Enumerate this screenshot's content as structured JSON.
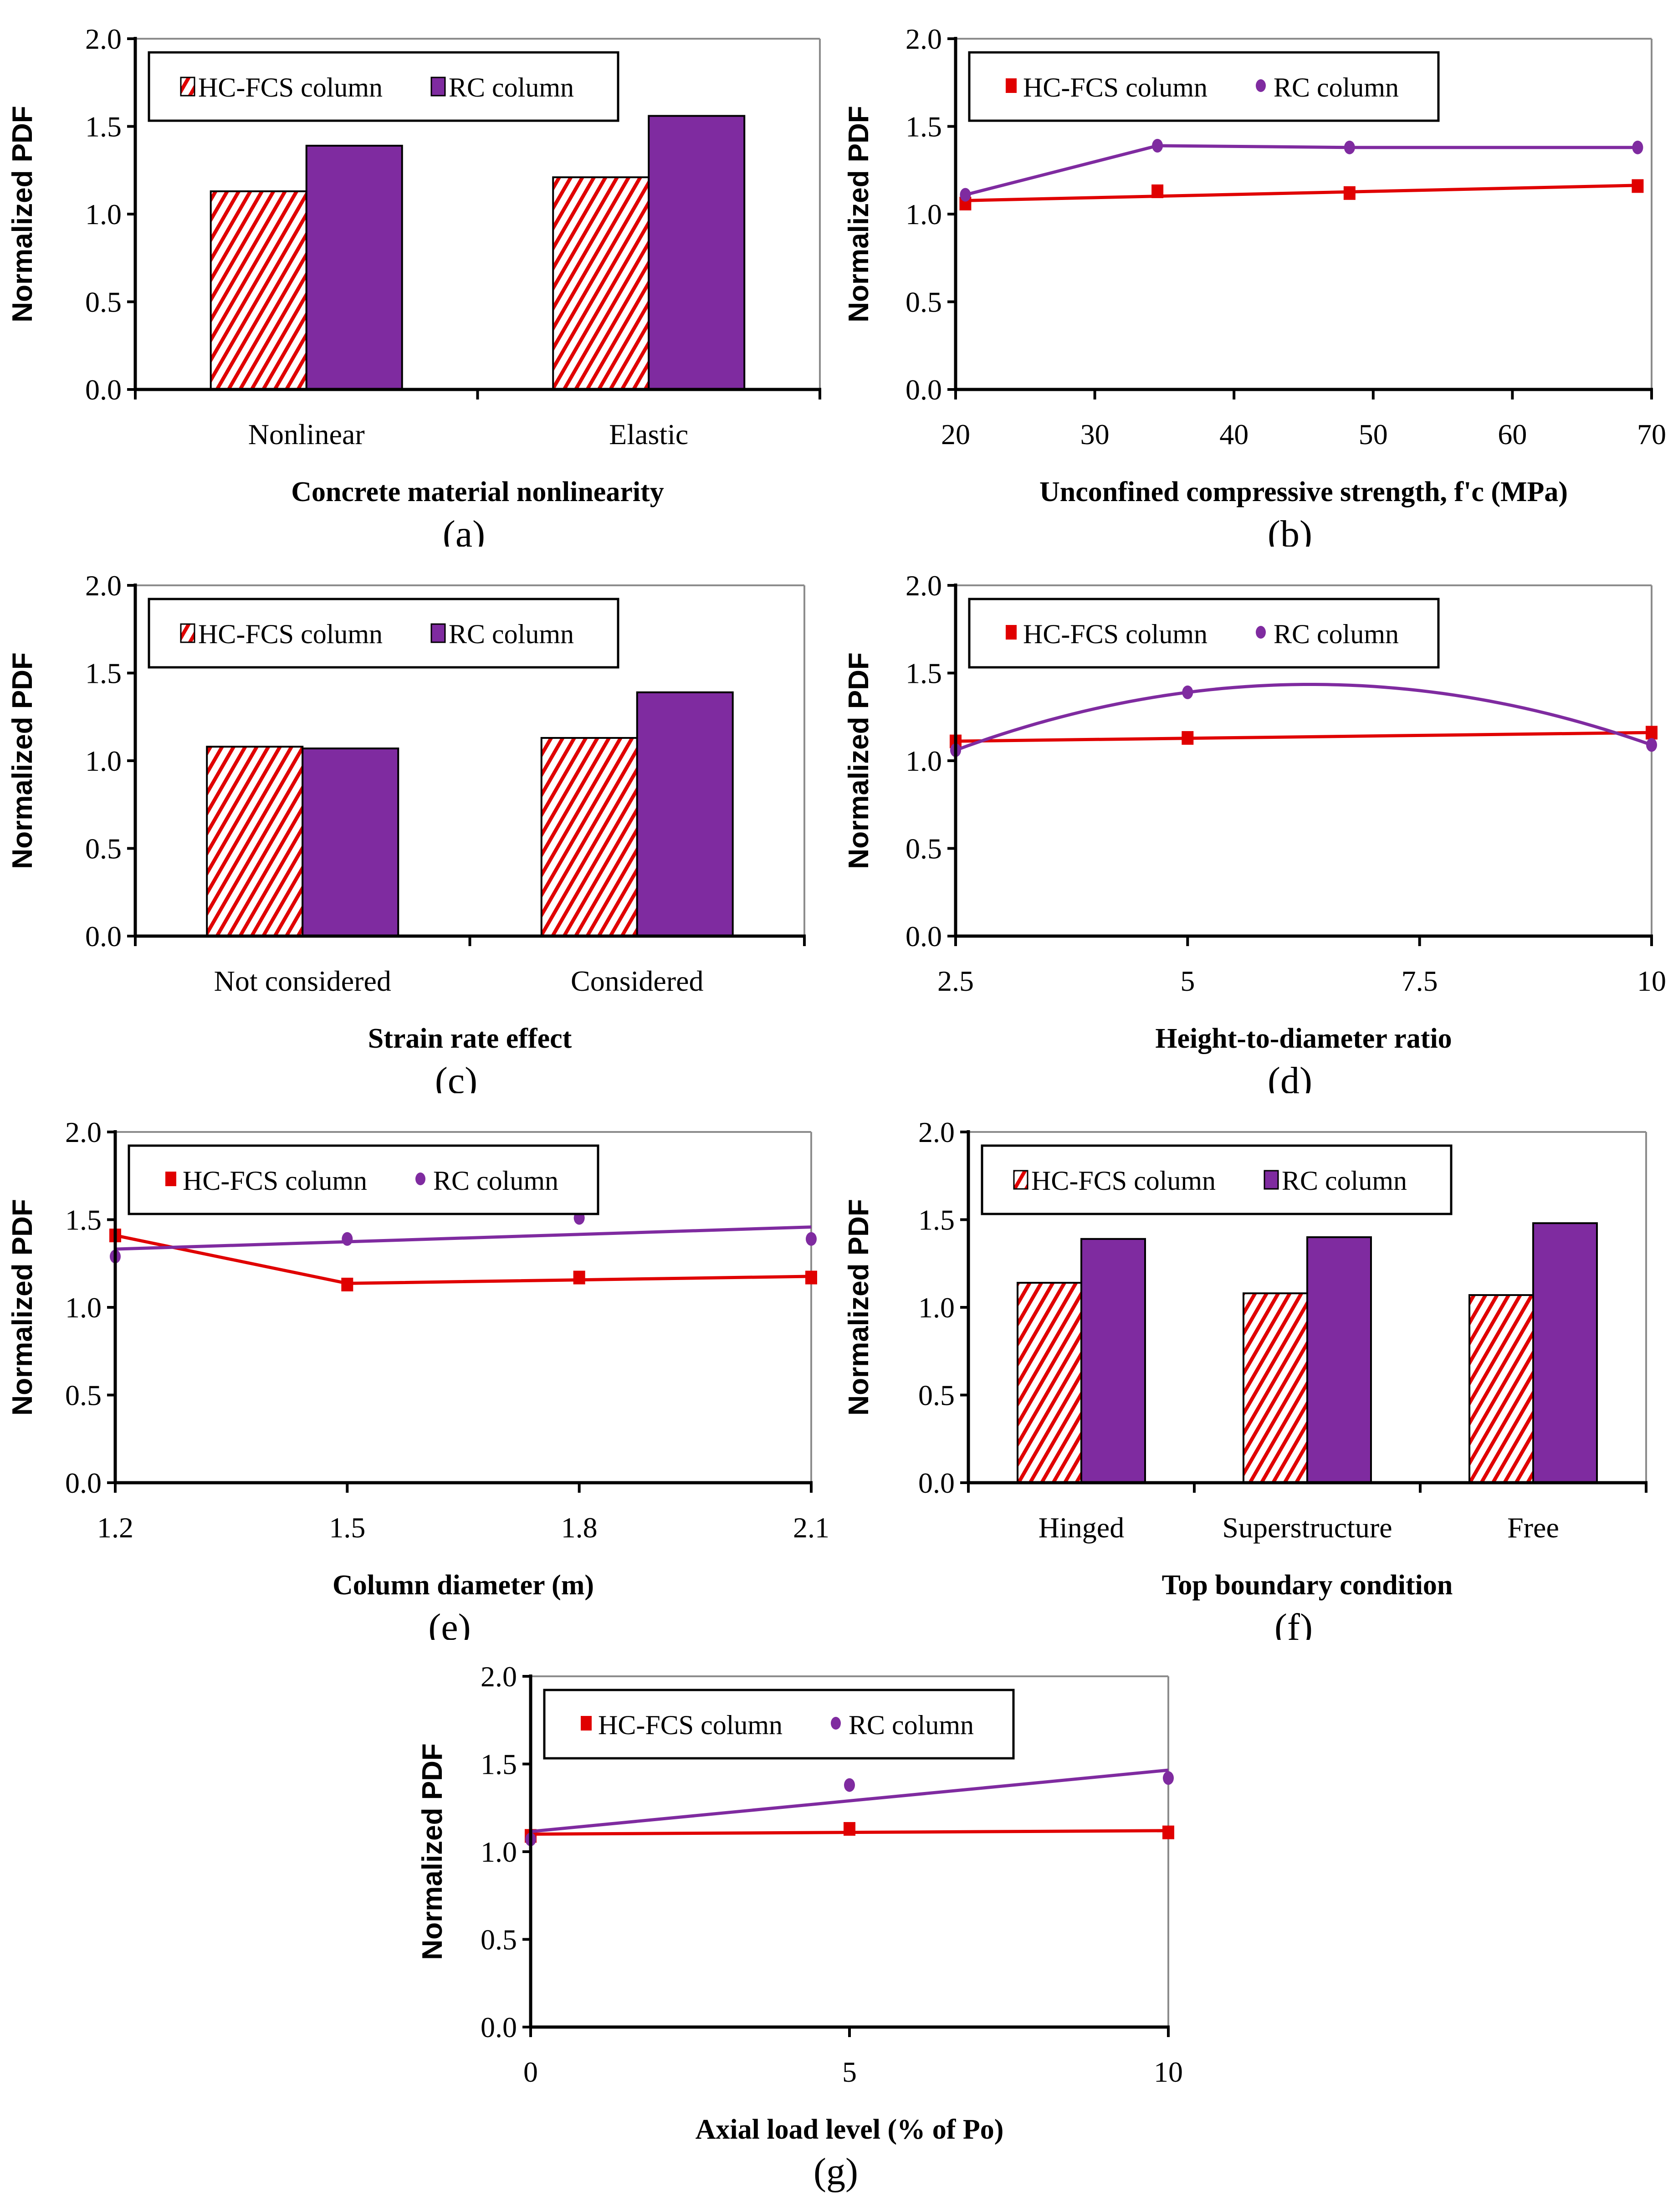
{
  "legend": {
    "series1": "HC-FCS column",
    "series2": "RC column"
  },
  "colors": {
    "hcfcs": "#E00000",
    "rc": "#7F2BA0",
    "axis": "#000000",
    "frame": "#8c8c8c"
  },
  "chart_data": [
    {
      "id": "a",
      "caption": "(a)",
      "type": "bar",
      "title": "",
      "xlabel": "Concrete material nonlinearity",
      "ylabel": "Normalized PDF",
      "ylim": [
        0,
        2.0
      ],
      "yticks": [
        "0.0",
        "0.5",
        "1.0",
        "1.5",
        "2.0"
      ],
      "grid": false,
      "legend_position": "top-left",
      "categories": [
        "Nonlinear",
        "Elastic"
      ],
      "series": [
        {
          "name": "HC-FCS column",
          "style": "hatched",
          "values": [
            1.13,
            1.21
          ]
        },
        {
          "name": "RC column",
          "style": "solid",
          "values": [
            1.39,
            1.56
          ]
        }
      ]
    },
    {
      "id": "b",
      "caption": "(b)",
      "type": "line",
      "title": "",
      "xlabel": "Unconfined compressive strength, f'c (MPa)",
      "ylabel": "Normalized PDF",
      "xlim": [
        20,
        70
      ],
      "xticks": [
        "20",
        "30",
        "40",
        "50",
        "60",
        "70"
      ],
      "ylim": [
        0,
        2.0
      ],
      "yticks": [
        "0.0",
        "0.5",
        "1.0",
        "1.5",
        "2.0"
      ],
      "grid": false,
      "legend_position": "top-left",
      "series": [
        {
          "name": "HC-FCS column",
          "marker": "square",
          "x": [
            20.7,
            34.5,
            48.3,
            69.0
          ],
          "y": [
            1.06,
            1.13,
            1.12,
            1.16
          ],
          "fit": "linear"
        },
        {
          "name": "RC column",
          "marker": "circle",
          "x": [
            20.7,
            34.5,
            48.3,
            69.0
          ],
          "y": [
            1.11,
            1.39,
            1.38,
            1.38
          ],
          "fit": "segments"
        }
      ]
    },
    {
      "id": "c",
      "caption": "(c)",
      "type": "bar",
      "title": "",
      "xlabel": "Strain rate effect",
      "ylabel": "Normalized PDF",
      "ylim": [
        0,
        2.0
      ],
      "yticks": [
        "0.0",
        "0.5",
        "1.0",
        "1.5",
        "2.0"
      ],
      "grid": false,
      "legend_position": "top-left",
      "categories": [
        "Not considered",
        "Considered"
      ],
      "series": [
        {
          "name": "HC-FCS column",
          "style": "hatched",
          "values": [
            1.08,
            1.13
          ]
        },
        {
          "name": "RC column",
          "style": "solid",
          "values": [
            1.07,
            1.39
          ]
        }
      ]
    },
    {
      "id": "d",
      "caption": "(d)",
      "type": "line",
      "title": "",
      "xlabel": "Height-to-diameter ratio",
      "ylabel": "Normalized PDF",
      "xlim": [
        2.5,
        10
      ],
      "xticks": [
        "2.5",
        "5",
        "7.5",
        "10"
      ],
      "ylim": [
        0,
        2.0
      ],
      "yticks": [
        "0.0",
        "0.5",
        "1.0",
        "1.5",
        "2.0"
      ],
      "grid": false,
      "legend_position": "top-left",
      "series": [
        {
          "name": "HC-FCS column",
          "marker": "square",
          "x": [
            2.5,
            5,
            10
          ],
          "y": [
            1.11,
            1.13,
            1.16
          ],
          "fit": "linear"
        },
        {
          "name": "RC column",
          "marker": "circle",
          "x": [
            2.5,
            5,
            10
          ],
          "y": [
            1.06,
            1.39,
            1.09
          ],
          "fit": "quadratic"
        }
      ]
    },
    {
      "id": "e",
      "caption": "(e)",
      "type": "line",
      "title": "",
      "xlabel": "Column diameter (m)",
      "ylabel": "Normalized PDF",
      "xlim": [
        1.2,
        2.1
      ],
      "xticks": [
        "1.2",
        "1.5",
        "1.8",
        "2.1"
      ],
      "ylim": [
        0,
        2.0
      ],
      "yticks": [
        "0.0",
        "0.5",
        "1.0",
        "1.5",
        "2.0"
      ],
      "grid": false,
      "legend_position": "top-left",
      "series": [
        {
          "name": "HC-FCS column",
          "marker": "square",
          "x": [
            1.2,
            1.5,
            1.8,
            2.1
          ],
          "y": [
            1.41,
            1.13,
            1.17,
            1.17
          ],
          "fit": "segments-then-linear"
        },
        {
          "name": "RC column",
          "marker": "circle",
          "x": [
            1.2,
            1.5,
            1.8,
            2.1
          ],
          "y": [
            1.29,
            1.39,
            1.51,
            1.39
          ],
          "fit": "linear"
        }
      ]
    },
    {
      "id": "f",
      "caption": "(f)",
      "type": "bar",
      "title": "",
      "xlabel": "Top boundary condition",
      "ylabel": "Normalized PDF",
      "ylim": [
        0,
        2.0
      ],
      "yticks": [
        "0.0",
        "0.5",
        "1.0",
        "1.5",
        "2.0"
      ],
      "grid": false,
      "legend_position": "top-left",
      "categories": [
        "Hinged",
        "Superstructure",
        "Free"
      ],
      "series": [
        {
          "name": "HC-FCS column",
          "style": "hatched",
          "values": [
            1.14,
            1.08,
            1.07
          ]
        },
        {
          "name": "RC column",
          "style": "solid",
          "values": [
            1.39,
            1.4,
            1.48
          ]
        }
      ]
    },
    {
      "id": "g",
      "caption": "(g)",
      "type": "line",
      "title": "",
      "xlabel": "Axial load level (% of Po)",
      "ylabel": "Normalized PDF",
      "xlim": [
        0,
        10
      ],
      "xticks": [
        "0",
        "5",
        "10"
      ],
      "ylim": [
        0,
        2.0
      ],
      "yticks": [
        "0.0",
        "0.5",
        "1.0",
        "1.5",
        "2.0"
      ],
      "grid": false,
      "legend_position": "top-left",
      "series": [
        {
          "name": "HC-FCS column",
          "marker": "square",
          "x": [
            0,
            5,
            10
          ],
          "y": [
            1.09,
            1.13,
            1.11
          ],
          "fit": "linear"
        },
        {
          "name": "RC column",
          "marker": "circle",
          "x": [
            0,
            5,
            10
          ],
          "y": [
            1.07,
            1.38,
            1.42
          ],
          "fit": "linear"
        }
      ]
    }
  ]
}
